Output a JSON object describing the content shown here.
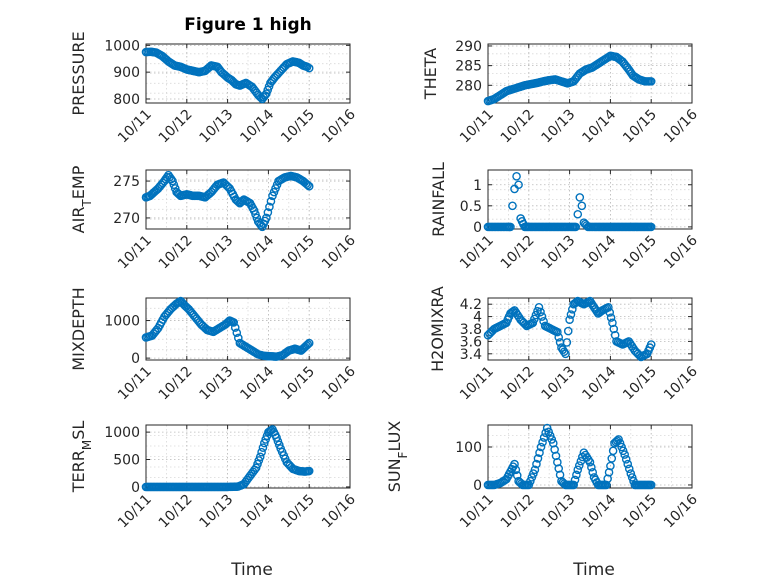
{
  "chart_data": [
    {
      "type": "scatter",
      "title": "Figure 1 high",
      "ylabel": "PRESSURE",
      "xlabel": "",
      "xlim": [
        0,
        5
      ],
      "xticks": [
        0,
        1,
        2,
        3,
        4,
        5
      ],
      "xticklabels": [
        "10/11",
        "10/12",
        "10/13",
        "10/14",
        "10/15",
        "10/16"
      ],
      "ylim": [
        785,
        1005
      ],
      "yticks": [
        800,
        900,
        1000
      ],
      "yticklabels": [
        "800",
        "900",
        "1000"
      ],
      "grid": true,
      "series": [
        {
          "name": "PRESSURE",
          "x": [
            0.0,
            0.12,
            0.25,
            0.4,
            0.55,
            0.7,
            0.85,
            1.0,
            1.15,
            1.3,
            1.45,
            1.6,
            1.75,
            1.85,
            2.0,
            2.1,
            2.2,
            2.3,
            2.45,
            2.6,
            2.75,
            2.85,
            2.95,
            3.05,
            3.15,
            3.3,
            3.45,
            3.6,
            3.75,
            3.85,
            3.95,
            4.0
          ],
          "y": [
            975,
            976,
            973,
            960,
            940,
            925,
            920,
            910,
            905,
            900,
            905,
            925,
            920,
            900,
            880,
            870,
            855,
            850,
            860,
            845,
            815,
            800,
            820,
            860,
            880,
            905,
            930,
            940,
            935,
            925,
            920,
            915
          ]
        }
      ]
    },
    {
      "type": "scatter",
      "title": "",
      "ylabel": "THETA",
      "xlabel": "",
      "xlim": [
        0,
        5
      ],
      "xticks": [
        0,
        1,
        2,
        3,
        4,
        5
      ],
      "xticklabels": [
        "10/11",
        "10/12",
        "10/13",
        "10/14",
        "10/15",
        "10/16"
      ],
      "ylim": [
        275.5,
        290.5
      ],
      "yticks": [
        280,
        285,
        290
      ],
      "yticklabels": [
        "280",
        "285",
        "290"
      ],
      "grid": true,
      "series": [
        {
          "name": "THETA",
          "x": [
            0.0,
            0.15,
            0.3,
            0.45,
            0.6,
            0.75,
            0.9,
            1.05,
            1.2,
            1.35,
            1.5,
            1.65,
            1.8,
            1.95,
            2.1,
            2.25,
            2.4,
            2.55,
            2.7,
            2.85,
            3.0,
            3.15,
            3.3,
            3.45,
            3.55,
            3.7,
            3.85,
            4.0
          ],
          "y": [
            276,
            276.5,
            277.5,
            278.5,
            279,
            279.5,
            280,
            280.3,
            280.6,
            281,
            281.3,
            281.5,
            281,
            280.5,
            281,
            283,
            284,
            284.5,
            285.5,
            286.5,
            287.5,
            287.2,
            286,
            284,
            282.5,
            281.5,
            281,
            281
          ]
        }
      ]
    },
    {
      "type": "scatter",
      "title": "",
      "ylabel": "AIR_TEMP",
      "xlabel": "",
      "xlim": [
        0,
        5
      ],
      "xticks": [
        0,
        1,
        2,
        3,
        4,
        5
      ],
      "xticklabels": [
        "10/11",
        "10/12",
        "10/13",
        "10/14",
        "10/15",
        "10/16"
      ],
      "ylim": [
        268.5,
        276.5
      ],
      "yticks": [
        270,
        275
      ],
      "yticklabels": [
        "270",
        "275"
      ],
      "grid": true,
      "series": [
        {
          "name": "AIR_TEMP",
          "x": [
            0.0,
            0.1,
            0.2,
            0.3,
            0.45,
            0.55,
            0.65,
            0.75,
            0.85,
            1.0,
            1.15,
            1.3,
            1.45,
            1.6,
            1.75,
            1.9,
            2.05,
            2.2,
            2.3,
            2.4,
            2.55,
            2.65,
            2.75,
            2.85,
            2.95,
            3.1,
            3.25,
            3.4,
            3.55,
            3.7,
            3.85,
            4.0
          ],
          "y": [
            272.8,
            273,
            273.5,
            274,
            275,
            275.8,
            275,
            273.5,
            273,
            273.2,
            273,
            273,
            272.8,
            273.5,
            274.5,
            274.8,
            274,
            272.5,
            272,
            272.5,
            272,
            271,
            269.5,
            268.8,
            270,
            273,
            275,
            275.5,
            275.7,
            275.5,
            275,
            274.3
          ]
        }
      ]
    },
    {
      "type": "scatter",
      "title": "",
      "ylabel": "RAINFALL",
      "xlabel": "",
      "xlim": [
        0,
        5
      ],
      "xticks": [
        0,
        1,
        2,
        3,
        4,
        5
      ],
      "xticklabels": [
        "10/11",
        "10/12",
        "10/13",
        "10/14",
        "10/15",
        "10/16"
      ],
      "ylim": [
        -0.05,
        1.35
      ],
      "yticks": [
        0,
        0.5,
        1
      ],
      "yticklabels": [
        "0",
        "0.5",
        "1"
      ],
      "grid": true,
      "series": [
        {
          "name": "RAINFALL",
          "x": [
            0.0,
            0.15,
            0.3,
            0.45,
            0.55,
            0.6,
            0.65,
            0.7,
            0.75,
            0.8,
            0.9,
            1.1,
            1.3,
            1.5,
            1.7,
            1.9,
            2.05,
            2.15,
            2.2,
            2.25,
            2.3,
            2.35,
            2.45,
            2.6,
            2.8,
            3.0,
            3.2,
            3.4,
            3.6,
            3.8,
            4.0
          ],
          "y": [
            0,
            0,
            0,
            0,
            0,
            0.5,
            0.9,
            1.2,
            1.0,
            0.2,
            0,
            0,
            0,
            0,
            0,
            0,
            0,
            0,
            0.3,
            0.7,
            0.5,
            0.1,
            0,
            0,
            0,
            0,
            0,
            0,
            0,
            0,
            0
          ]
        }
      ]
    },
    {
      "type": "scatter",
      "title": "",
      "ylabel": "MIXDEPTH",
      "xlabel": "",
      "xlim": [
        0,
        5
      ],
      "xticks": [
        0,
        1,
        2,
        3,
        4,
        5
      ],
      "xticklabels": [
        "10/11",
        "10/12",
        "10/13",
        "10/14",
        "10/15",
        "10/16"
      ],
      "ylim": [
        -50,
        1600
      ],
      "yticks": [
        0,
        1000
      ],
      "yticklabels": [
        "0",
        "1000"
      ],
      "grid": true,
      "series": [
        {
          "name": "MIXDEPTH",
          "x": [
            0.0,
            0.15,
            0.3,
            0.45,
            0.6,
            0.75,
            0.85,
            0.95,
            1.05,
            1.2,
            1.35,
            1.5,
            1.65,
            1.8,
            1.95,
            2.05,
            2.15,
            2.3,
            2.45,
            2.6,
            2.75,
            2.9,
            3.05,
            3.2,
            3.35,
            3.5,
            3.65,
            3.8,
            3.9,
            4.0
          ],
          "y": [
            550,
            600,
            800,
            1100,
            1300,
            1450,
            1520,
            1400,
            1300,
            1100,
            900,
            750,
            700,
            800,
            900,
            1000,
            950,
            400,
            300,
            200,
            100,
            60,
            50,
            40,
            80,
            200,
            250,
            200,
            300,
            400
          ]
        }
      ]
    },
    {
      "type": "scatter",
      "title": "",
      "ylabel": "H2OMIXRA",
      "xlabel": "",
      "xlim": [
        0,
        5
      ],
      "xticks": [
        0,
        1,
        2,
        3,
        4,
        5
      ],
      "xticklabels": [
        "10/11",
        "10/12",
        "10/13",
        "10/14",
        "10/15",
        "10/16"
      ],
      "ylim": [
        3.3,
        4.3
      ],
      "yticks": [
        3.4,
        3.6,
        3.8,
        4.0,
        4.2
      ],
      "yticklabels": [
        "3.4",
        "3.6",
        "3.8",
        "4",
        "4.2"
      ],
      "grid": true,
      "series": [
        {
          "name": "H2OMIXRA",
          "x": [
            0.0,
            0.15,
            0.3,
            0.45,
            0.55,
            0.65,
            0.8,
            0.95,
            1.1,
            1.25,
            1.4,
            1.55,
            1.7,
            1.8,
            1.9,
            2.0,
            2.1,
            2.2,
            2.35,
            2.5,
            2.6,
            2.7,
            2.8,
            2.95,
            3.05,
            3.15,
            3.3,
            3.45,
            3.6,
            3.75,
            3.9,
            4.0
          ],
          "y": [
            3.7,
            3.8,
            3.85,
            3.9,
            4.05,
            4.1,
            3.95,
            3.85,
            3.9,
            4.15,
            3.85,
            3.8,
            3.75,
            3.5,
            3.4,
            3.95,
            4.2,
            4.25,
            4.2,
            4.25,
            4.15,
            4.05,
            4.1,
            4.15,
            3.9,
            3.6,
            3.55,
            3.6,
            3.45,
            3.35,
            3.4,
            3.55
          ]
        }
      ]
    },
    {
      "type": "scatter",
      "title": "",
      "ylabel": "TERR_MSL",
      "xlabel": "Time",
      "xlim": [
        0,
        5
      ],
      "xticks": [
        0,
        1,
        2,
        3,
        4,
        5
      ],
      "xticklabels": [
        "10/11",
        "10/12",
        "10/13",
        "10/14",
        "10/15",
        "10/16"
      ],
      "ylim": [
        -20,
        1130
      ],
      "yticks": [
        0,
        500,
        1000
      ],
      "yticklabels": [
        "0",
        "500",
        "1000"
      ],
      "grid": true,
      "series": [
        {
          "name": "TERR_MSL",
          "x": [
            0.0,
            0.25,
            0.5,
            0.75,
            1.0,
            1.25,
            1.5,
            1.75,
            2.0,
            2.25,
            2.4,
            2.55,
            2.7,
            2.8,
            2.9,
            3.0,
            3.1,
            3.2,
            3.3,
            3.45,
            3.6,
            3.75,
            3.9,
            4.0
          ],
          "y": [
            0,
            0,
            0,
            0,
            0,
            0,
            0,
            0,
            0,
            5,
            50,
            200,
            350,
            550,
            800,
            1000,
            1050,
            900,
            700,
            450,
            330,
            290,
            280,
            290
          ]
        }
      ]
    },
    {
      "type": "scatter",
      "title": "",
      "ylabel": "SUN_FLUX",
      "xlabel": "Time",
      "xlim": [
        0,
        5
      ],
      "xticks": [
        0,
        1,
        2,
        3,
        4,
        5
      ],
      "xticklabels": [
        "10/11",
        "10/12",
        "10/13",
        "10/14",
        "10/15",
        "10/16"
      ],
      "ylim": [
        -8,
        158
      ],
      "yticks": [
        0,
        100
      ],
      "yticklabels": [
        "0",
        "100"
      ],
      "grid": true,
      "series": [
        {
          "name": "SUN_FLUX",
          "x": [
            0.0,
            0.15,
            0.3,
            0.45,
            0.55,
            0.65,
            0.75,
            0.85,
            1.0,
            1.15,
            1.3,
            1.45,
            1.6,
            1.7,
            1.8,
            1.9,
            2.0,
            2.1,
            2.2,
            2.35,
            2.5,
            2.6,
            2.7,
            2.8,
            2.9,
            3.0,
            3.1,
            3.2,
            3.35,
            3.5,
            3.6,
            3.7,
            3.8,
            3.9,
            4.0
          ],
          "y": [
            0,
            0,
            5,
            15,
            35,
            55,
            10,
            0,
            0,
            40,
            100,
            150,
            110,
            60,
            10,
            0,
            0,
            0,
            40,
            85,
            60,
            20,
            0,
            0,
            0,
            50,
            110,
            120,
            80,
            30,
            0,
            0,
            0,
            0,
            0
          ]
        }
      ]
    }
  ]
}
